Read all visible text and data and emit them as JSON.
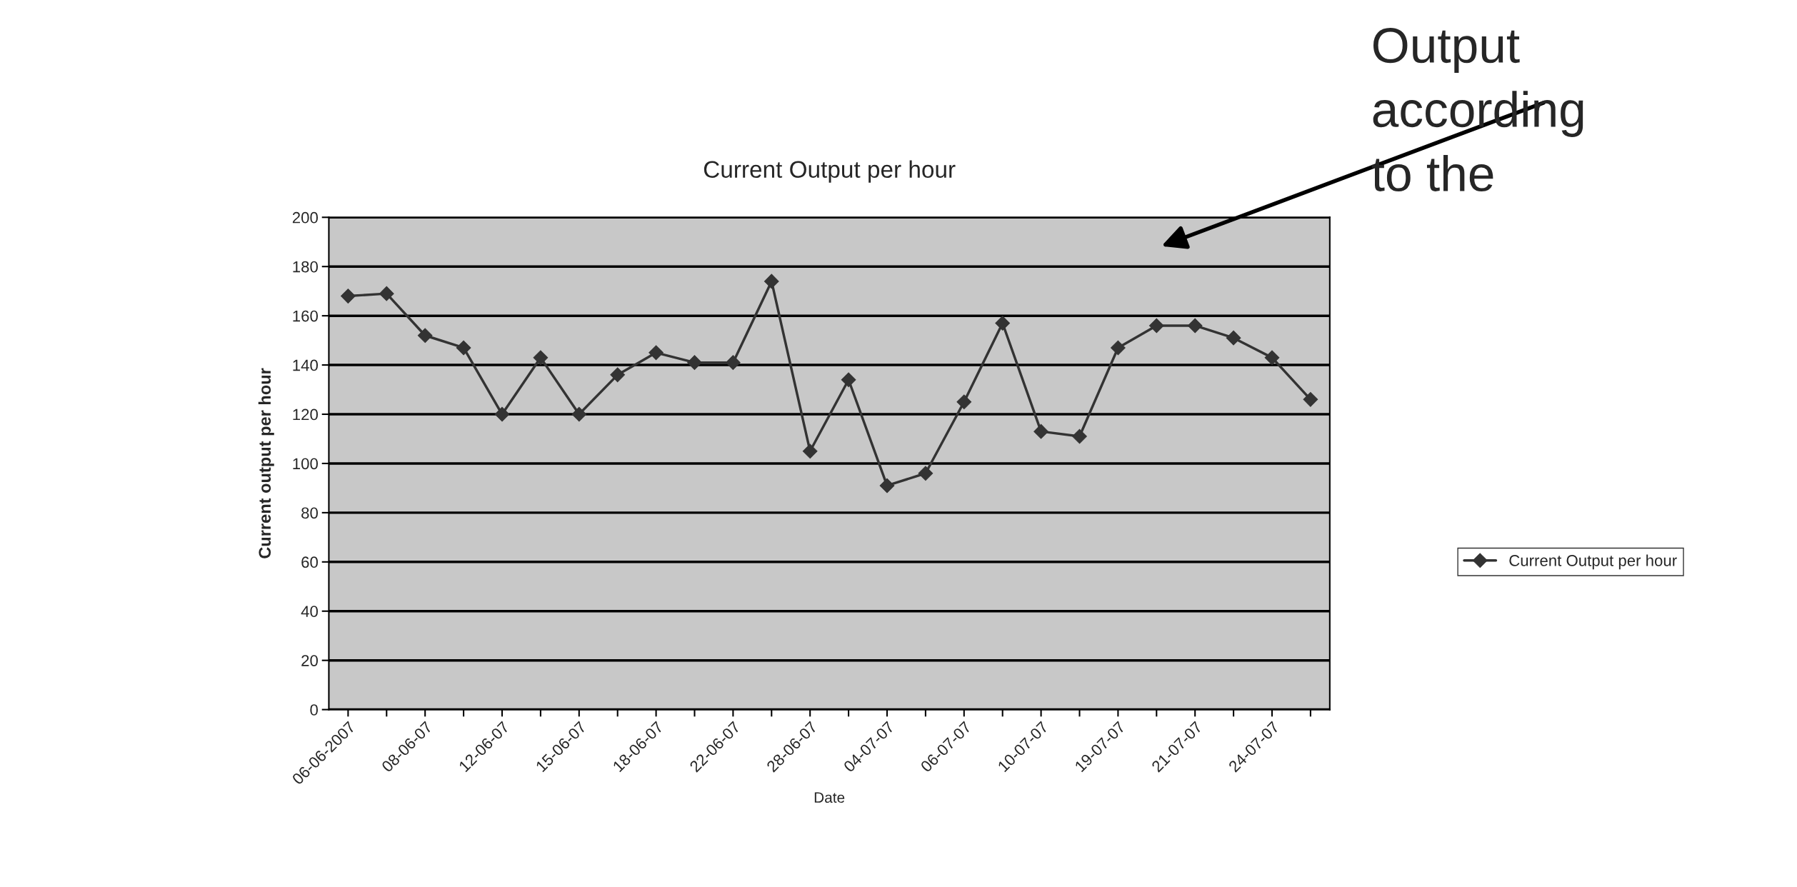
{
  "chart_data": {
    "type": "line",
    "title": "Current Output per hour",
    "xlabel": "Date",
    "ylabel": "Current output per hour",
    "categories": [
      "06-06-2007",
      null,
      "08-06-07",
      null,
      "12-06-07",
      null,
      "15-06-07",
      null,
      "18-06-07",
      null,
      "22-06-07",
      null,
      "28-06-07",
      null,
      "04-07-07",
      null,
      "06-07-07",
      null,
      "10-07-07",
      null,
      "19-07-07",
      null,
      "21-07-07",
      null,
      "24-07-07",
      null
    ],
    "series": [
      {
        "name": "Current Output per hour",
        "color": "#333333",
        "values": [
          168,
          169,
          152,
          147,
          120,
          143,
          120,
          136,
          145,
          141,
          141,
          174,
          105,
          134,
          91,
          96,
          125,
          157,
          113,
          111,
          147,
          156,
          156,
          151,
          143,
          126
        ]
      }
    ],
    "ylim": [
      0,
      200
    ],
    "yticks": [
      0,
      20,
      40,
      60,
      80,
      100,
      120,
      140,
      160,
      180,
      200
    ],
    "grid": "y",
    "legend": "right",
    "marker": "diamond",
    "line_style": "solid",
    "annotations": [
      "Output according to the"
    ]
  }
}
